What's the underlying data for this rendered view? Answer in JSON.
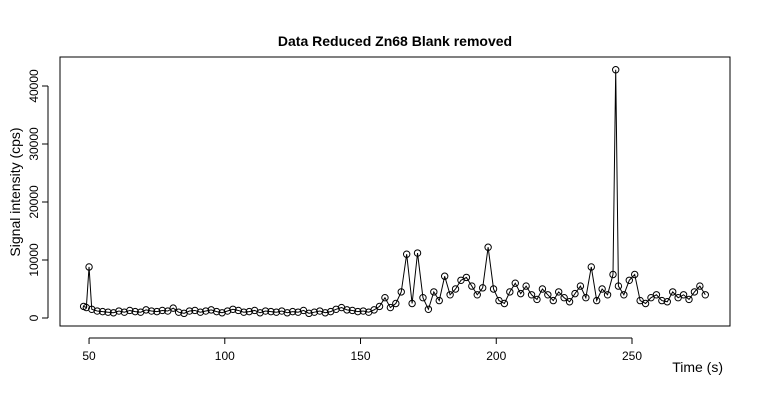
{
  "chart_data": {
    "type": "line",
    "title": "Data Reduced Zn68 Blank removed",
    "x_label": "Time (s)",
    "y_label": "Signal intensity (cps)",
    "x": [
      48,
      49,
      50,
      51,
      53,
      55,
      57,
      59,
      61,
      63,
      65,
      67,
      69,
      71,
      73,
      75,
      77,
      79,
      81,
      83,
      85,
      87,
      89,
      91,
      93,
      95,
      97,
      99,
      101,
      103,
      105,
      107,
      109,
      111,
      113,
      115,
      117,
      119,
      121,
      123,
      125,
      127,
      129,
      131,
      133,
      135,
      137,
      139,
      141,
      143,
      145,
      147,
      149,
      151,
      153,
      155,
      157,
      159,
      161,
      163,
      165,
      167,
      169,
      171,
      173,
      175,
      177,
      179,
      181,
      183,
      185,
      187,
      189,
      191,
      193,
      195,
      197,
      199,
      201,
      203,
      205,
      207,
      209,
      211,
      213,
      215,
      217,
      219,
      221,
      223,
      225,
      227,
      229,
      231,
      233,
      235,
      237,
      239,
      241,
      243,
      244,
      245,
      247,
      249,
      251,
      253,
      255,
      257,
      259,
      261,
      263,
      265,
      267,
      269,
      271,
      273,
      275,
      277
    ],
    "series": [
      {
        "name": "Zn68",
        "color": "#000000",
        "values": [
          2000,
          1800,
          8800,
          1500,
          1200,
          1100,
          1000,
          900,
          1200,
          1000,
          1300,
          1100,
          1000,
          1400,
          1200,
          1100,
          1300,
          1200,
          1700,
          1000,
          800,
          1200,
          1300,
          1000,
          1200,
          1400,
          1100,
          900,
          1200,
          1500,
          1300,
          1000,
          1100,
          1300,
          900,
          1200,
          1100,
          1000,
          1200,
          900,
          1100,
          1000,
          1300,
          800,
          1000,
          1200,
          900,
          1100,
          1500,
          1800,
          1400,
          1300,
          1100,
          1200,
          1000,
          1400,
          2000,
          3500,
          1800,
          2500,
          4500,
          11000,
          2500,
          11200,
          3500,
          1500,
          4500,
          3000,
          7200,
          4000,
          5000,
          6500,
          7000,
          5500,
          4000,
          5200,
          12200,
          5000,
          3000,
          2500,
          4500,
          6000,
          4200,
          5500,
          4000,
          3200,
          5000,
          4000,
          3000,
          4500,
          3500,
          2800,
          4200,
          5500,
          3500,
          8800,
          3000,
          5000,
          4000,
          7500,
          42800,
          5500,
          4000,
          6500,
          7500,
          3000,
          2500,
          3500,
          4000,
          3000,
          2800,
          4500,
          3500,
          4000,
          3200,
          4500,
          5500,
          4000
        ]
      }
    ],
    "xlim": [
      39.3,
      286.1
    ],
    "ylim": [
      -1380,
      45000
    ],
    "xticks": [
      50,
      100,
      150,
      200,
      250
    ],
    "yticks": [
      0,
      10000,
      20000,
      30000,
      40000
    ]
  }
}
